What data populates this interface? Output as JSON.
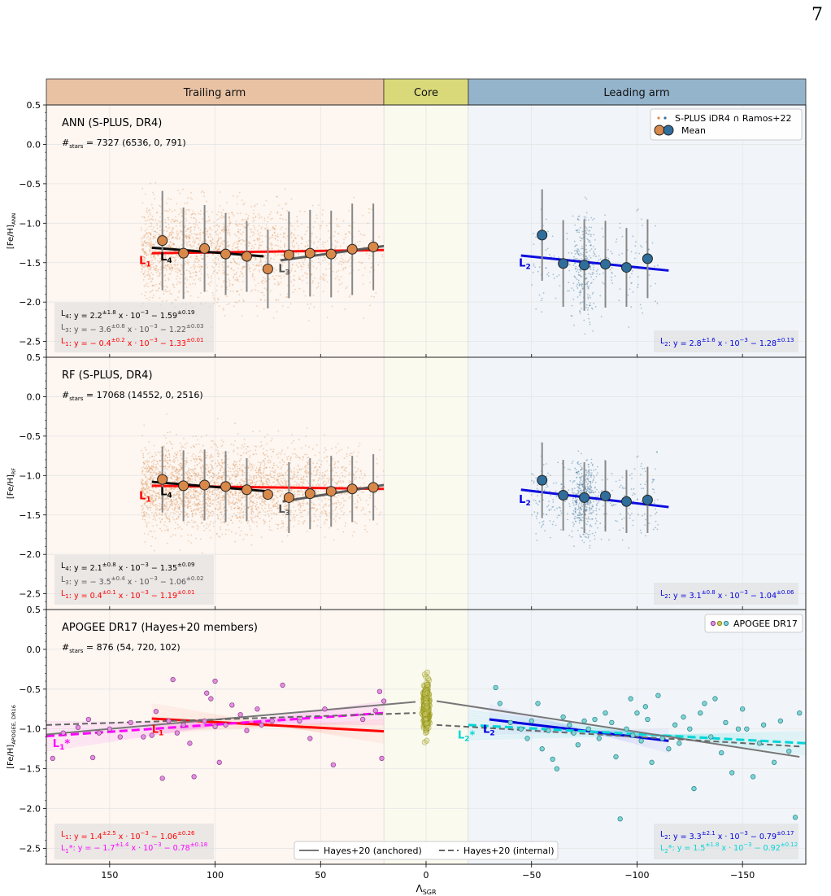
{
  "page_number": "7",
  "colors": {
    "trailing": "#e9c2a4",
    "core": "#d9d97a",
    "leading": "#94b4cc",
    "orange_points": "#d8894a",
    "blue_points": "#3a6f95",
    "red": "#ff0000",
    "black": "#000000",
    "grey": "#555555",
    "blue": "#0000dd",
    "magenta": "#ff00ff",
    "cyan": "#00d6d6",
    "olive": "#8b8b00"
  },
  "regions": [
    {
      "label": "Trailing arm"
    },
    {
      "label": "Core"
    },
    {
      "label": "Leading arm"
    }
  ],
  "x_axis": {
    "label": "Λ",
    "label_sub": "SGR"
  },
  "chart_data": [
    {
      "type": "scatter",
      "title": "ANN (S-PLUS, DR4)",
      "nstars_prefix": "#",
      "nstars_sub": "stars",
      "nstars_value": " = 7327 (6536, 0, 791)",
      "ylabel": "[Fe/H]",
      "ylabel_sub": "ANN",
      "xlim": [
        180,
        -180
      ],
      "ylim": [
        -2.7,
        0.5
      ],
      "xticks": [
        150,
        100,
        50,
        0,
        -50,
        -100,
        -150
      ],
      "yticks": [
        0.5,
        0.0,
        -0.5,
        -1.0,
        -1.5,
        -2.0,
        -2.5
      ],
      "legend": [
        {
          "label": "S-PLUS iDR4 ∩ Ramos+22"
        },
        {
          "label": "Mean"
        }
      ],
      "legend_position": "top-right",
      "means_trailing": [
        {
          "x": 125,
          "y": -1.22,
          "err": 0.63
        },
        {
          "x": 115,
          "y": -1.38,
          "err": 0.58
        },
        {
          "x": 105,
          "y": -1.32,
          "err": 0.55
        },
        {
          "x": 95,
          "y": -1.39,
          "err": 0.52
        },
        {
          "x": 85,
          "y": -1.42,
          "err": 0.45
        },
        {
          "x": 75,
          "y": -1.58,
          "err": 0.5
        },
        {
          "x": 65,
          "y": -1.4,
          "err": 0.55
        },
        {
          "x": 55,
          "y": -1.38,
          "err": 0.55
        },
        {
          "x": 45,
          "y": -1.39,
          "err": 0.55
        },
        {
          "x": 35,
          "y": -1.33,
          "err": 0.58
        },
        {
          "x": 25,
          "y": -1.3,
          "err": 0.55
        }
      ],
      "means_leading": [
        {
          "x": -55,
          "y": -1.15,
          "err": 0.58
        },
        {
          "x": -65,
          "y": -1.51,
          "err": 0.55
        },
        {
          "x": -75,
          "y": -1.53,
          "err": 0.58
        },
        {
          "x": -85,
          "y": -1.52,
          "err": 0.55
        },
        {
          "x": -95,
          "y": -1.56,
          "err": 0.5
        },
        {
          "x": -105,
          "y": -1.45,
          "err": 0.5
        }
      ],
      "fits": [
        {
          "id": "L1",
          "x": [
            130,
            20
          ],
          "y": [
            -1.38,
            -1.34
          ],
          "color": "#ff0000"
        },
        {
          "id": "L4",
          "x": [
            130,
            77
          ],
          "y": [
            -1.31,
            -1.42
          ],
          "color": "#000000"
        },
        {
          "id": "L3",
          "x": [
            69,
            20
          ],
          "y": [
            -1.47,
            -1.29
          ],
          "color": "#555555"
        },
        {
          "id": "L2",
          "x": [
            -45,
            -115
          ],
          "y": [
            -1.41,
            -1.6
          ],
          "color": "#0000dd"
        }
      ],
      "line_labels": [
        {
          "main": "L",
          "sub": "1",
          "x": 136,
          "y": -1.52,
          "color": "#ff0000"
        },
        {
          "main": "L",
          "sub": "4",
          "x": 126,
          "y": -1.47,
          "color": "#000000"
        },
        {
          "main": "L",
          "sub": "3",
          "x": 70,
          "y": -1.62,
          "color": "#555555"
        },
        {
          "main": "L",
          "sub": "2",
          "x": -44,
          "y": -1.55,
          "color": "#0000dd"
        }
      ],
      "equations_left": [
        {
          "main": "L",
          "sub": "4",
          "before": ": y = 2.2",
          "sup1": "±1.8",
          "mid": "x · 10",
          "sup2": "−3",
          "after": " − 1.59",
          "sup3": "±0.19",
          "color": "#000000"
        },
        {
          "main": "L",
          "sub": "3",
          "before": ": y = − 3.6",
          "sup1": "±0.8",
          "mid": "x · 10",
          "sup2": "−3",
          "after": " − 1.22",
          "sup3": "±0.03",
          "color": "#555555"
        },
        {
          "main": "L",
          "sub": "1",
          "before": ": y = − 0.4",
          "sup1": "±0.2",
          "mid": "x · 10",
          "sup2": "−3",
          "after": " − 1.33",
          "sup3": "±0.01",
          "color": "#ff0000"
        }
      ],
      "equations_right": [
        {
          "main": "L",
          "sub": "2",
          "before": ": y = 2.8",
          "sup1": "±1.6",
          "mid": "x · 10",
          "sup2": "−3",
          "after": " − 1.28",
          "sup3": "±0.13",
          "color": "#0000dd"
        }
      ]
    },
    {
      "type": "scatter",
      "title": "RF (S-PLUS, DR4)",
      "nstars_prefix": "#",
      "nstars_sub": "stars",
      "nstars_value": " = 17068 (14552, 0, 2516)",
      "ylabel": "[Fe/H]",
      "ylabel_sub": "RF",
      "xlim": [
        180,
        -180
      ],
      "ylim": [
        -2.7,
        0.5
      ],
      "xticks": [
        150,
        100,
        50,
        0,
        -50,
        -100,
        -150
      ],
      "yticks": [
        0.5,
        0.0,
        -0.5,
        -1.0,
        -1.5,
        -2.0,
        -2.5
      ],
      "means_trailing": [
        {
          "x": 125,
          "y": -1.05,
          "err": 0.42
        },
        {
          "x": 115,
          "y": -1.13,
          "err": 0.45
        },
        {
          "x": 105,
          "y": -1.12,
          "err": 0.45
        },
        {
          "x": 95,
          "y": -1.14,
          "err": 0.45
        },
        {
          "x": 85,
          "y": -1.18,
          "err": 0.4
        },
        {
          "x": 75,
          "y": -1.24,
          "err": 0.0
        },
        {
          "x": 65,
          "y": -1.28,
          "err": 0.45
        },
        {
          "x": 55,
          "y": -1.23,
          "err": 0.45
        },
        {
          "x": 45,
          "y": -1.2,
          "err": 0.45
        },
        {
          "x": 35,
          "y": -1.17,
          "err": 0.42
        },
        {
          "x": 25,
          "y": -1.15,
          "err": 0.42
        }
      ],
      "means_leading": [
        {
          "x": -55,
          "y": -1.06,
          "err": 0.48
        },
        {
          "x": -65,
          "y": -1.25,
          "err": 0.45
        },
        {
          "x": -75,
          "y": -1.28,
          "err": 0.45
        },
        {
          "x": -85,
          "y": -1.26,
          "err": 0.45
        },
        {
          "x": -95,
          "y": -1.33,
          "err": 0.4
        },
        {
          "x": -105,
          "y": -1.31,
          "err": 0.42
        }
      ],
      "fits": [
        {
          "id": "L1",
          "x": [
            130,
            20
          ],
          "y": [
            -1.13,
            -1.17
          ],
          "color": "#ff0000"
        },
        {
          "id": "L4",
          "x": [
            130,
            75
          ],
          "y": [
            -1.08,
            -1.2
          ],
          "color": "#000000"
        },
        {
          "id": "L3",
          "x": [
            68,
            20
          ],
          "y": [
            -1.33,
            -1.12
          ],
          "color": "#555555"
        },
        {
          "id": "L2",
          "x": [
            -45,
            -115
          ],
          "y": [
            -1.18,
            -1.4
          ],
          "color": "#0000dd"
        }
      ],
      "line_labels": [
        {
          "main": "L",
          "sub": "1",
          "x": 136,
          "y": -1.3,
          "color": "#ff0000"
        },
        {
          "main": "L",
          "sub": "4",
          "x": 126,
          "y": -1.25,
          "color": "#000000"
        },
        {
          "main": "L",
          "sub": "3",
          "x": 70,
          "y": -1.47,
          "color": "#555555"
        },
        {
          "main": "L",
          "sub": "2",
          "x": -44,
          "y": -1.35,
          "color": "#0000dd"
        }
      ],
      "equations_left": [
        {
          "main": "L",
          "sub": "4",
          "before": ": y = 2.1",
          "sup1": "±0.8",
          "mid": "x · 10",
          "sup2": "−3",
          "after": " − 1.35",
          "sup3": "±0.09",
          "color": "#000000"
        },
        {
          "main": "L",
          "sub": "3",
          "before": ": y = − 3.5",
          "sup1": "±0.4",
          "mid": "x · 10",
          "sup2": "−3",
          "after": " − 1.06",
          "sup3": "±0.02",
          "color": "#555555"
        },
        {
          "main": "L",
          "sub": "1",
          "before": ": y = 0.4",
          "sup1": "±0.1",
          "mid": "x · 10",
          "sup2": "−3",
          "after": " − 1.19",
          "sup3": "±0.01",
          "color": "#ff0000"
        }
      ],
      "equations_right": [
        {
          "main": "L",
          "sub": "2",
          "before": ": y = 3.1",
          "sup1": "±0.8",
          "mid": "x · 10",
          "sup2": "−3",
          "after": " − 1.04",
          "sup3": "±0.06",
          "color": "#0000dd"
        }
      ]
    },
    {
      "type": "scatter",
      "title": "APOGEE DR17 (Hayes+20 members)",
      "nstars_prefix": "#",
      "nstars_sub": "stars",
      "nstars_value": " = 876 (54, 720, 102)",
      "ylabel": "[Fe/H]",
      "ylabel_sub": "APOGEE, DR16",
      "xlim": [
        180,
        -180
      ],
      "ylim": [
        -2.7,
        0.5
      ],
      "xticks": [
        150,
        100,
        50,
        0,
        -50,
        -100,
        -150
      ],
      "yticks": [
        0.5,
        0.0,
        -0.5,
        -1.0,
        -1.5,
        -2.0,
        -2.5
      ],
      "xtick_labels": [
        "150",
        "100",
        "50",
        "0",
        "−50",
        "−100",
        "−150"
      ],
      "legend": [
        {
          "label": "APOGEE DR17"
        }
      ],
      "legend_position": "top-right",
      "legend_bottom": [
        {
          "label": "Hayes+20 (anchored)"
        },
        {
          "label": "Hayes+20 (internal)"
        }
      ],
      "points_trailing": [
        [
          177,
          -1.37
        ],
        [
          172,
          -1.05
        ],
        [
          165,
          -0.98
        ],
        [
          160,
          -0.88
        ],
        [
          158,
          -1.36
        ],
        [
          155,
          -1.05
        ],
        [
          150,
          -1.0
        ],
        [
          145,
          -1.1
        ],
        [
          140,
          -0.92
        ],
        [
          134,
          -1.1
        ],
        [
          130,
          -1.08
        ],
        [
          128,
          -0.78
        ],
        [
          125,
          -1.62
        ],
        [
          122,
          -0.9
        ],
        [
          120,
          -0.38
        ],
        [
          118,
          -1.05
        ],
        [
          115,
          -0.95
        ],
        [
          112,
          -1.18
        ],
        [
          110,
          -1.6
        ],
        [
          105,
          -0.9
        ],
        [
          104,
          -0.55
        ],
        [
          102,
          -0.62
        ],
        [
          100,
          -0.4
        ],
        [
          100,
          -0.97
        ],
        [
          98,
          -1.42
        ],
        [
          95,
          -0.95
        ],
        [
          92,
          -0.7
        ],
        [
          88,
          -0.82
        ],
        [
          85,
          -1.02
        ],
        [
          80,
          -0.75
        ],
        [
          78,
          -0.95
        ],
        [
          73,
          -0.9
        ],
        [
          68,
          -0.45
        ],
        [
          60,
          -0.9
        ],
        [
          55,
          -1.12
        ],
        [
          48,
          -0.75
        ],
        [
          44,
          -1.45
        ],
        [
          30,
          -0.88
        ],
        [
          24,
          -0.77
        ],
        [
          22,
          -0.53
        ],
        [
          21,
          -1.37
        ],
        [
          20,
          -0.65
        ]
      ],
      "points_leading": [
        [
          -33,
          -0.48
        ],
        [
          -35,
          -0.68
        ],
        [
          -40,
          -0.92
        ],
        [
          -45,
          -1.0
        ],
        [
          -48,
          -1.12
        ],
        [
          -50,
          -0.9
        ],
        [
          -53,
          -0.68
        ],
        [
          -55,
          -1.25
        ],
        [
          -58,
          -1.02
        ],
        [
          -60,
          -1.38
        ],
        [
          -62,
          -1.5
        ],
        [
          -65,
          -0.85
        ],
        [
          -68,
          -0.95
        ],
        [
          -70,
          -1.05
        ],
        [
          -72,
          -1.2
        ],
        [
          -75,
          -0.9
        ],
        [
          -77,
          -1.0
        ],
        [
          -80,
          -0.88
        ],
        [
          -82,
          -1.12
        ],
        [
          -85,
          -0.8
        ],
        [
          -88,
          -0.92
        ],
        [
          -90,
          -1.35
        ],
        [
          -92,
          -2.13
        ],
        [
          -95,
          -1.0
        ],
        [
          -97,
          -0.62
        ],
        [
          -98,
          -1.08
        ],
        [
          -100,
          -0.8
        ],
        [
          -102,
          -1.15
        ],
        [
          -104,
          -0.72
        ],
        [
          -105,
          -0.88
        ],
        [
          -107,
          -1.42
        ],
        [
          -110,
          -0.58
        ],
        [
          -112,
          -1.12
        ],
        [
          -115,
          -1.25
        ],
        [
          -118,
          -0.95
        ],
        [
          -120,
          -1.18
        ],
        [
          -122,
          -0.85
        ],
        [
          -125,
          -1.0
        ],
        [
          -127,
          -1.75
        ],
        [
          -130,
          -0.8
        ],
        [
          -132,
          -0.68
        ],
        [
          -135,
          -1.1
        ],
        [
          -137,
          -0.62
        ],
        [
          -140,
          -1.3
        ],
        [
          -142,
          -0.92
        ],
        [
          -145,
          -1.55
        ],
        [
          -148,
          -1.0
        ],
        [
          -150,
          -0.75
        ],
        [
          -152,
          -1.0
        ],
        [
          -155,
          -1.6
        ],
        [
          -158,
          -1.18
        ],
        [
          -160,
          -0.95
        ],
        [
          -165,
          -1.42
        ],
        [
          -168,
          -0.9
        ],
        [
          -172,
          -1.28
        ],
        [
          -175,
          -2.11
        ],
        [
          -177,
          -0.8
        ]
      ],
      "core_center": {
        "x": 0,
        "y_min": -1.38,
        "y_max": -0.15
      },
      "fits": [
        {
          "id": "L1",
          "x": [
            130,
            20
          ],
          "y": [
            -0.87,
            -1.03
          ],
          "color": "#ff0000",
          "dash": false
        },
        {
          "id": "L1*",
          "x": [
            180,
            20
          ],
          "y": [
            -1.09,
            -0.8
          ],
          "color": "#ff00ff",
          "dash": true
        },
        {
          "id": "H20a_t",
          "x": [
            180,
            5
          ],
          "y": [
            -1.07,
            -0.66
          ],
          "color": "#777777",
          "dash": false
        },
        {
          "id": "H20i_t",
          "x": [
            180,
            5
          ],
          "y": [
            -0.95,
            -0.8
          ],
          "color": "#666666",
          "dash": true
        },
        {
          "id": "L2",
          "x": [
            -30,
            -115
          ],
          "y": [
            -0.88,
            -1.15
          ],
          "color": "#0000dd",
          "dash": false
        },
        {
          "id": "L2*",
          "x": [
            -20,
            -180
          ],
          "y": [
            -0.95,
            -1.18
          ],
          "color": "#00d6d6",
          "dash": true
        },
        {
          "id": "H20a_l",
          "x": [
            -5,
            -177
          ],
          "y": [
            -0.65,
            -1.35
          ],
          "color": "#777777",
          "dash": false
        },
        {
          "id": "H20i_l",
          "x": [
            -5,
            -177
          ],
          "y": [
            -0.95,
            -1.22
          ],
          "color": "#666666",
          "dash": true
        }
      ],
      "line_labels": [
        {
          "main": "L",
          "sub": "1",
          "x": 130,
          "y": -1.05,
          "color": "#ff0000"
        },
        {
          "main": "L",
          "sub": "1",
          "x": 177,
          "y": -1.23,
          "color": "#ff00ff",
          "star": "*"
        },
        {
          "main": "L",
          "sub": "2",
          "x": -27,
          "y": -1.05,
          "color": "#0000dd"
        },
        {
          "main": "L",
          "sub": "2",
          "x": -15,
          "y": -1.12,
          "color": "#00d6d6",
          "star": "*"
        }
      ],
      "equations_left": [
        {
          "main": "L",
          "sub": "1",
          "before": ": y = 1.4",
          "sup1": "±2.5",
          "mid": "x · 10",
          "sup2": "−3",
          "after": " − 1.06",
          "sup3": "±0.26",
          "color": "#ff0000"
        },
        {
          "main": "L",
          "sub": "1",
          "star": "*",
          "before": ": y = − 1.7",
          "sup1": "±1.4",
          "mid": "x · 10",
          "sup2": "−3",
          "after": " − 0.78",
          "sup3": "±0.18",
          "color": "#ff00ff"
        }
      ],
      "equations_right": [
        {
          "main": "L",
          "sub": "2",
          "before": ": y = 3.3",
          "sup1": "±2.1",
          "mid": "x · 10",
          "sup2": "−3",
          "after": " − 0.79",
          "sup3": "±0.17",
          "color": "#0000dd"
        },
        {
          "main": "L",
          "sub": "2",
          "star": "*",
          "before": ": y = 1.5",
          "sup1": "±1.8",
          "mid": "x · 10",
          "sup2": "−3",
          "after": " − 0.92",
          "sup3": "±0.12",
          "color": "#00d6d6"
        }
      ]
    }
  ]
}
